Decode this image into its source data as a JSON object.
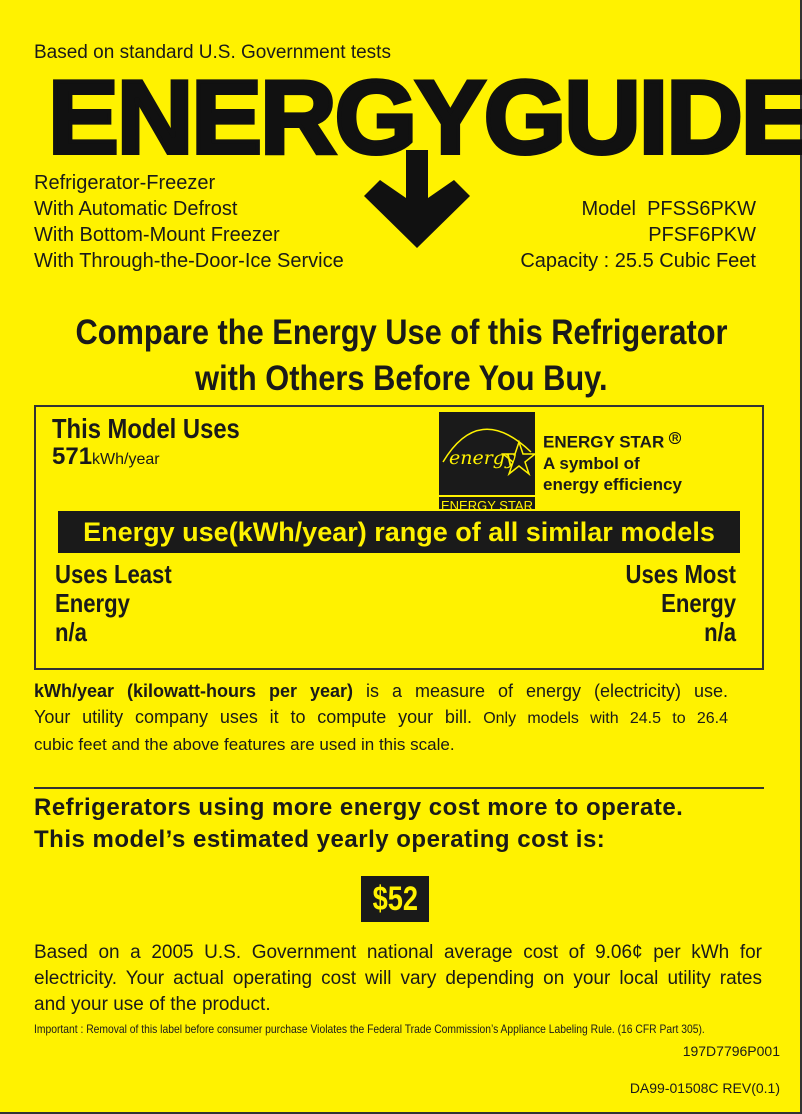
{
  "header": {
    "tagline": "Based on standard U.S. Government tests",
    "logo": "ENERGYGUIDE",
    "features": [
      "Refrigerator-Freezer",
      "With Automatic Defrost",
      "With Bottom-Mount Freezer",
      "With Through-the-Door-Ice Service"
    ],
    "model_label": "Model",
    "models": [
      "PFSS6PKW",
      "PFSF6PKW"
    ],
    "capacity": "Capacity : 25.5 Cubic Feet"
  },
  "headline": [
    "Compare the Energy Use of this Refrigerator",
    "with Others Before You Buy."
  ],
  "usage": {
    "title": "This Model Uses",
    "value": "571",
    "unit": "kWh/year",
    "energy_star": {
      "logo_script": "energy",
      "logo_caption": "ENERGY STAR",
      "name": "ENERGY STAR",
      "registered": "R",
      "line2": "A symbol of",
      "line3": "energy efficiency"
    },
    "range_title": "Energy use(kWh/year) range of all similar models",
    "least": [
      "Uses Least",
      "Energy",
      "n/a"
    ],
    "most": [
      "Uses Most",
      "Energy",
      "n/a"
    ]
  },
  "explanation": {
    "bold": "kWh/year (kilowatt-hours per year)",
    "rest": " is a measure of energy (electricity) use.",
    "line2": "Your utility company uses it to compute your bill.",
    "line2b": " Only models with 24.5 to 26.4",
    "line3": "cubic feet and the above features are used in this scale."
  },
  "cost": {
    "line1": "Refrigerators using more energy cost more to operate.",
    "line2": "This model’s estimated yearly operating cost is:",
    "amount": "$52",
    "note1": "Based on a 2005 U.S. Government national average cost of 9.06¢ per kWh for",
    "note2": "electricity. Your actual operating cost will vary depending on your local utility rates",
    "note3": "and your use of the product."
  },
  "footer": {
    "important": "Important : Removal of this label before consumer purchase Violates the Federal Trade Commission’s Appliance Labeling Rule. (16 CFR Part 305).",
    "code1": "197D7796P001",
    "code2": "DA99-01508C REV(0.1)"
  },
  "colors": {
    "background": "#FFF200",
    "ink": "#1a1a1a"
  }
}
